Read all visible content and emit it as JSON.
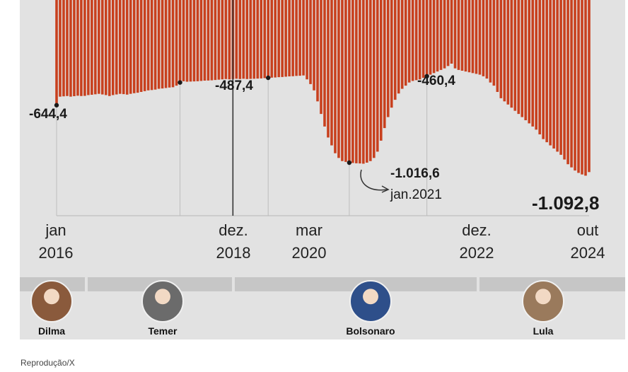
{
  "chart_data": {
    "type": "bar",
    "x_start": "2016-01",
    "x_end": "2024-10",
    "values": [
      -644.4,
      -590,
      -588,
      -586,
      -590,
      -587,
      -584,
      -586,
      -585,
      -580,
      -578,
      -575,
      -572,
      -576,
      -580,
      -586,
      -580,
      -576,
      -572,
      -574,
      -577,
      -572,
      -568,
      -565,
      -560,
      -555,
      -550,
      -548,
      -545,
      -540,
      -538,
      -535,
      -532,
      -530,
      -520,
      -500,
      -492,
      -495,
      -494,
      -493,
      -492,
      -490,
      -488,
      -487.4,
      -486,
      -484,
      -482,
      -480,
      -478,
      -480,
      -478,
      -476,
      -478,
      -476,
      -478,
      -477,
      -476,
      -475,
      -474,
      -472,
      -470,
      -469,
      -468,
      -466,
      -465,
      -463,
      -461,
      -460,
      -458,
      -457,
      -455,
      -480,
      -510,
      -550,
      -620,
      -700,
      -780,
      -850,
      -900,
      -950,
      -980,
      -1000,
      -1005,
      -1010,
      -1012,
      -1014,
      -1015,
      -1016.6,
      -1010,
      -1000,
      -980,
      -940,
      -870,
      -790,
      -720,
      -660,
      -610,
      -570,
      -540,
      -520,
      -500,
      -490,
      -485,
      -480,
      -470,
      -460,
      -450,
      -440,
      -430,
      -420,
      -410,
      -395,
      -380,
      -410,
      -420,
      -425,
      -430,
      -435,
      -440,
      -445,
      -450,
      -460.4,
      -475,
      -500,
      -520,
      -560,
      -600,
      -620,
      -640,
      -660,
      -680,
      -700,
      -720,
      -740,
      -760,
      -780,
      -800,
      -830,
      -860,
      -880,
      -900,
      -920,
      -940,
      -960,
      -990,
      -1020,
      -1040,
      -1060,
      -1075,
      -1085,
      -1092.8,
      -1070
    ],
    "annotations": [
      {
        "label": "-644,4",
        "date": "2016-01"
      },
      {
        "label": "-487,4",
        "date": "2018-12"
      },
      {
        "label": "-1.016,6",
        "sublabel": "jan.2021",
        "date": "2021-01"
      },
      {
        "label": "-460,4",
        "date": "2022-12"
      },
      {
        "label": "-1.092,8",
        "date": "2024-10"
      }
    ],
    "x_ticks": [
      {
        "month": "jan",
        "year": "2016"
      },
      {
        "month": "dez.",
        "year": "2018"
      },
      {
        "month": "mar",
        "year": "2020"
      },
      {
        "month": "dez.",
        "year": "2022"
      },
      {
        "month": "out",
        "year": "2024"
      }
    ],
    "reference_line": "2020-03",
    "bar_color": "#c8401e"
  },
  "presidents": [
    {
      "name": "Dilma",
      "color": "#8a5a3c"
    },
    {
      "name": "Temer",
      "color": "#6b6b6b"
    },
    {
      "name": "Bolsonaro",
      "color": "#2e4f8a"
    },
    {
      "name": "Lula",
      "color": "#9a7a5c"
    }
  ],
  "credit": "Reprodução/X"
}
